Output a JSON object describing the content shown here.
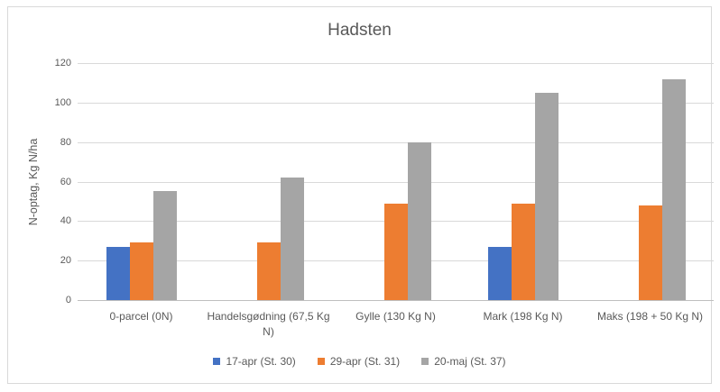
{
  "chart_data": {
    "type": "bar",
    "title": "Hadsten",
    "xlabel": "",
    "ylabel": "N-optag, Kg N/ha",
    "ylim": [
      0,
      120
    ],
    "ytick_step": 20,
    "grid": "horizontal",
    "legend_position": "bottom",
    "categories": [
      "0-parcel (0N)",
      "Handelsgødning (67,5 Kg N)",
      "Gylle (130 Kg N)",
      "Mark (198 Kg N)",
      "Maks (198 + 50 Kg N)"
    ],
    "series": [
      {
        "name": "17-apr (St. 30)",
        "color": "#4472C4",
        "values": [
          27,
          null,
          null,
          27,
          null
        ]
      },
      {
        "name": "29-apr (St. 31)",
        "color": "#ED7D31",
        "values": [
          29,
          29,
          49,
          49,
          48
        ]
      },
      {
        "name": "20-maj (St. 37)",
        "color": "#A5A5A5",
        "values": [
          55,
          62,
          80,
          105,
          112
        ]
      }
    ],
    "colors": {
      "border": "#D9D9D9",
      "gridline": "#D9D9D9",
      "axis_line": "#BFBFBF",
      "text": "#595959"
    }
  }
}
